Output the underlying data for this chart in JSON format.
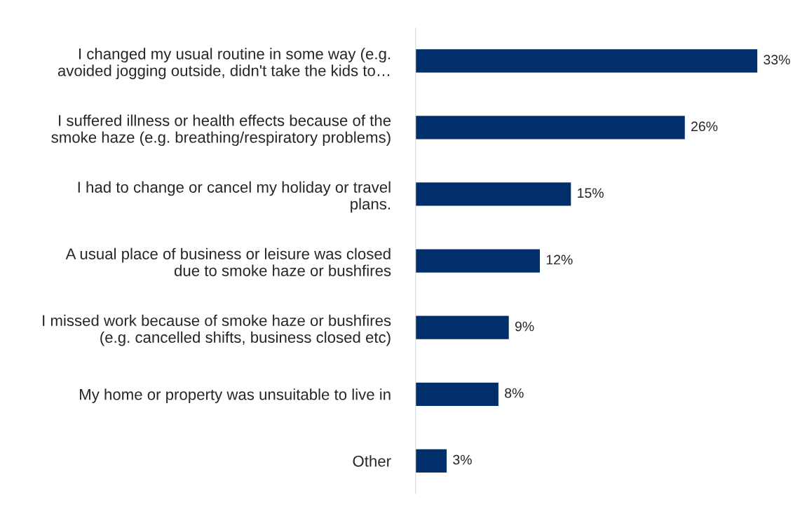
{
  "chart_data": {
    "type": "bar",
    "orientation": "horizontal",
    "categories": [
      "I changed my usual routine in some way (e.g.\navoided jogging outside, didn't take the kids to…",
      "I suffered illness or health effects because of the\nsmoke haze (e.g. breathing/respiratory problems)",
      "I had to change or cancel my holiday or travel\nplans.",
      "A usual place of business or leisure was closed\ndue to smoke haze or bushfires",
      "I missed work because of smoke haze or bushfires\n(e.g. cancelled shifts, business closed etc)",
      "My home or property was unsuitable to live in",
      "Other"
    ],
    "values": [
      33,
      26,
      15,
      12,
      9,
      8,
      3
    ],
    "value_labels": [
      "33%",
      "26%",
      "15%",
      "12%",
      "9%",
      "8%",
      "3%"
    ],
    "color": "#002f6c",
    "grid": false,
    "legend": false
  }
}
